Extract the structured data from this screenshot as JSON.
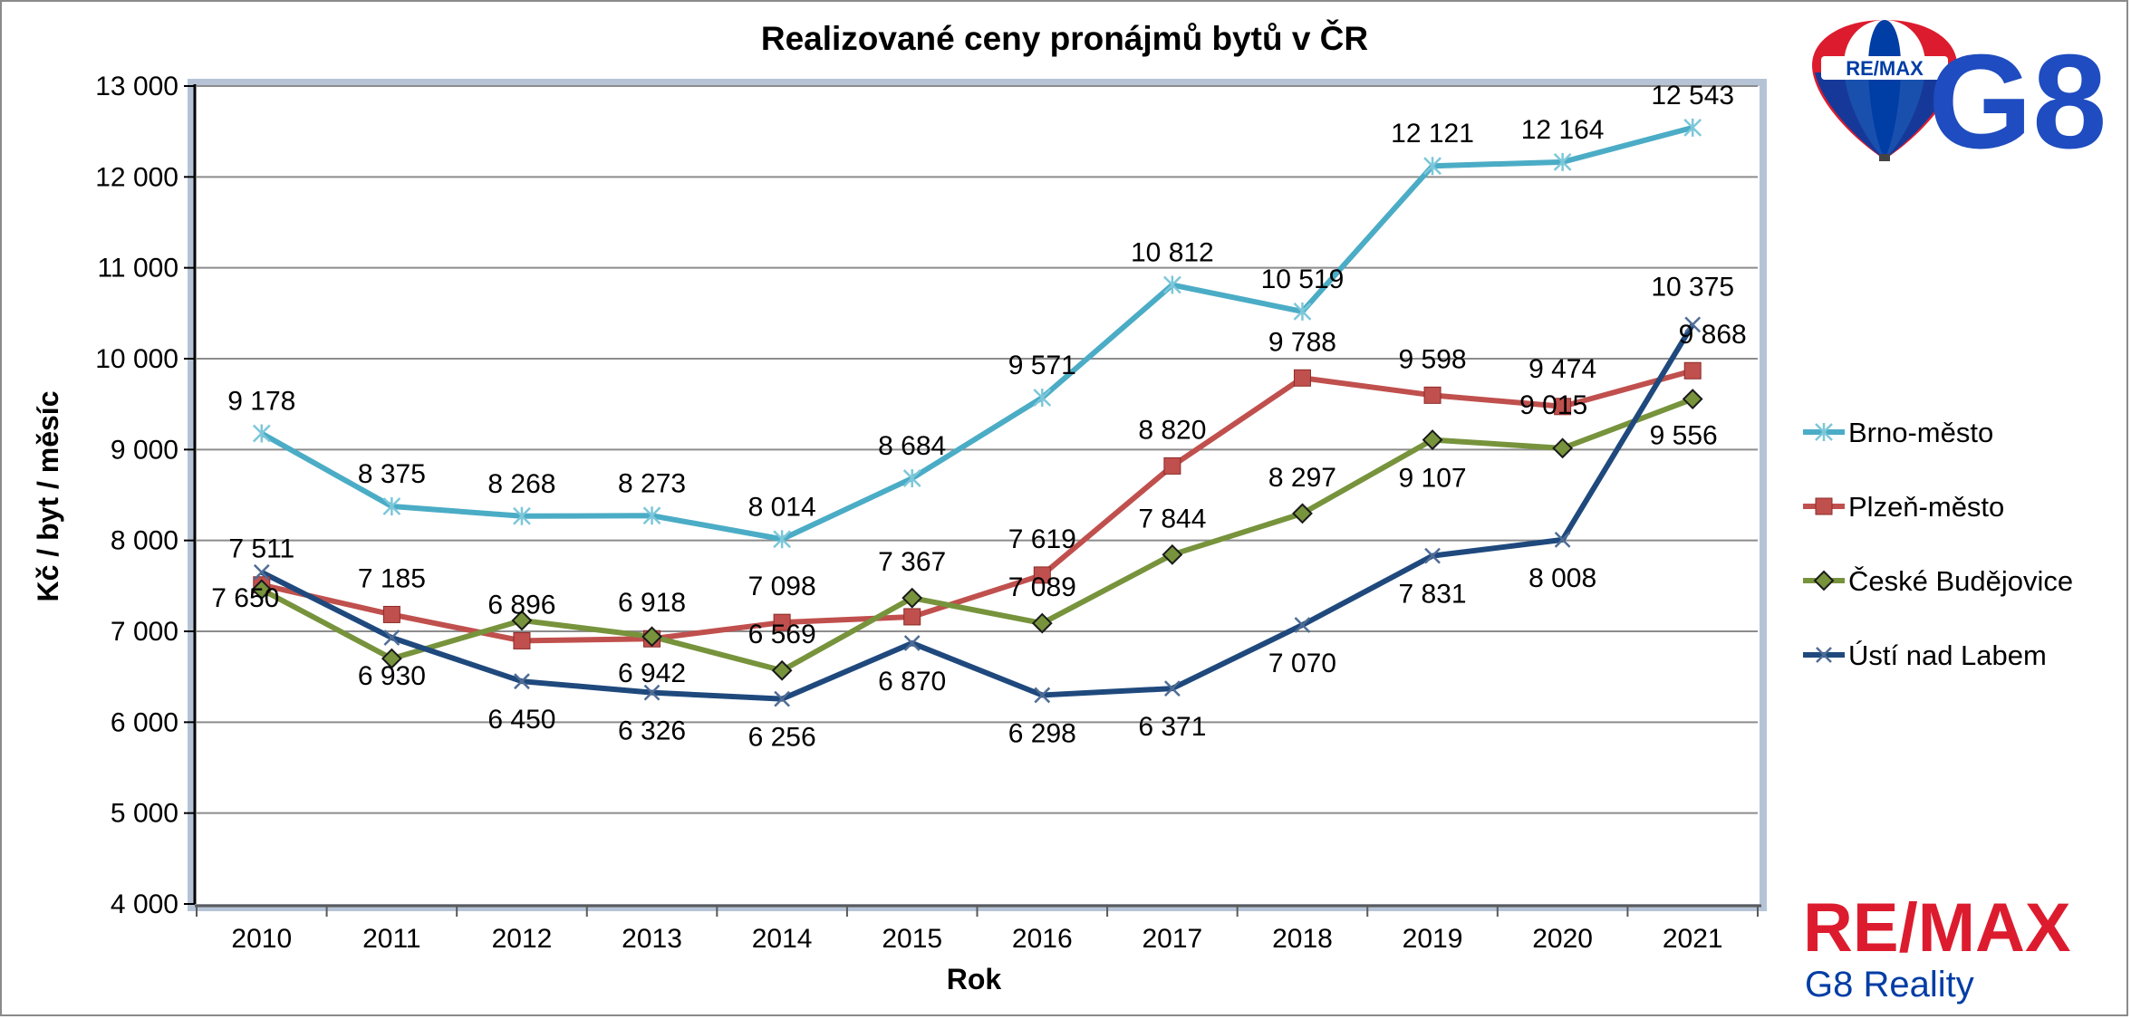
{
  "chart_data": {
    "type": "line",
    "title": "Realizované ceny pronájmů bytů v ČR",
    "xlabel": "Rok",
    "ylabel": "Kč / byt / měsíc",
    "ylim": [
      4000,
      13000
    ],
    "y_ticks": [
      {
        "value": 4000,
        "label": "4 000"
      },
      {
        "value": 5000,
        "label": "5 000"
      },
      {
        "value": 6000,
        "label": "6 000"
      },
      {
        "value": 7000,
        "label": "7 000"
      },
      {
        "value": 8000,
        "label": "8 000"
      },
      {
        "value": 9000,
        "label": "9 000"
      },
      {
        "value": 10000,
        "label": "10 000"
      },
      {
        "value": 11000,
        "label": "11 000"
      },
      {
        "value": 12000,
        "label": "12 000"
      },
      {
        "value": 13000,
        "label": "13 000"
      }
    ],
    "categories": [
      "2010",
      "2011",
      "2012",
      "2013",
      "2014",
      "2015",
      "2016",
      "2017",
      "2018",
      "2019",
      "2020",
      "2021"
    ],
    "grid": true,
    "legend_position": "right",
    "series": [
      {
        "name": "Brno-město",
        "color": "#4bacc6",
        "marker": "asterisk",
        "values": [
          9178,
          8375,
          8268,
          8273,
          8014,
          8684,
          9571,
          10812,
          10519,
          12121,
          12164,
          12543
        ],
        "labels": [
          "9 178",
          "8 375",
          "8 268",
          "8 273",
          "8 014",
          "8 684",
          "9 571",
          "10 812",
          "10 519",
          "12 121",
          "12 164",
          "12 543"
        ]
      },
      {
        "name": "Plzeň-město",
        "color": "#c0504d",
        "marker": "square",
        "values": [
          7511,
          7185,
          6896,
          6918,
          7098,
          7160,
          7619,
          8820,
          9788,
          9598,
          9474,
          9868
        ],
        "labels": [
          "7 511",
          "7 185",
          "6 896",
          "6 918",
          "7 098",
          "",
          "7 619",
          "8 820",
          "9 788",
          "9 598",
          "9 474",
          "9 868"
        ]
      },
      {
        "name": "České Budějovice",
        "color": "#77933c",
        "marker": "diamond",
        "values": [
          7460,
          6700,
          7120,
          6942,
          6569,
          7367,
          7089,
          7844,
          8297,
          9107,
          9015,
          9556
        ],
        "labels": [
          "",
          "",
          "",
          "6 942",
          "6 569",
          "7 367",
          "7 089",
          "7 844",
          "8 297",
          "9 107",
          "9 015",
          "9 556"
        ]
      },
      {
        "name": "Ústí nad Labem",
        "color": "#1f497d",
        "marker": "x",
        "values": [
          7650,
          6930,
          6450,
          6326,
          6256,
          6870,
          6298,
          6371,
          7070,
          7831,
          8008,
          10375
        ],
        "labels": [
          "7 650",
          "6 930",
          "6 450",
          "6 326",
          "6 256",
          "6 870",
          "6 298",
          "6 371",
          "7 070",
          "7 831",
          "8 008",
          "10 375"
        ]
      }
    ]
  },
  "logos": {
    "balloon_text": "RE/MAX",
    "g8_text": "G8",
    "remax_text": "RE/MAX",
    "reality_text": "G8 Reality",
    "remax_red": "#dc1c2e",
    "remax_blue": "#003da5"
  }
}
